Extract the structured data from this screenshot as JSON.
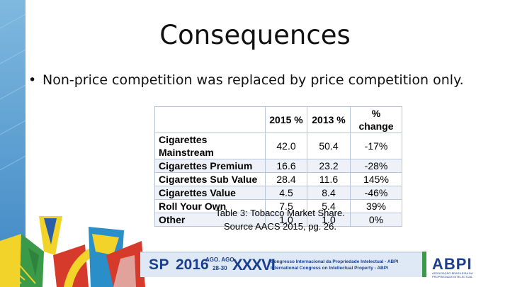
{
  "slide": {
    "title": "Consequences",
    "bullet": "Non-price competition was replaced by price competition only."
  },
  "table": {
    "headers": [
      "",
      "2015 %",
      "2013 %",
      "% change"
    ],
    "rows": [
      {
        "label": "Cigarettes Mainstream",
        "y2015": "42.0",
        "y2013": "50.4",
        "change": "-17%"
      },
      {
        "label": "Cigarettes Premium",
        "y2015": "16.6",
        "y2013": "23.2",
        "change": "-28%"
      },
      {
        "label": "Cigarettes Sub Value",
        "y2015": "28.4",
        "y2013": "11.6",
        "change": "145%"
      },
      {
        "label": "Cigarettes Value",
        "y2015": "4.5",
        "y2013": "8.4",
        "change": "-46%"
      },
      {
        "label": "Roll Your Own",
        "y2015": "7.5",
        "y2013": "5.4",
        "change": "39%"
      },
      {
        "label": "Other",
        "y2015": "1.0",
        "y2013": "1.0",
        "change": "0%"
      }
    ],
    "caption_line1": "Table 3: Tobacco Market Share.",
    "caption_line2": "Source AACS 2015, pg. 26."
  },
  "footer": {
    "city": "SP",
    "year": "2016",
    "dates_line1": "AGO. AGO",
    "dates_line2": "28-30",
    "edition": "XXXVI",
    "congress_line1": "Congresso Internacional da Propriedade Intelectual - ABPI",
    "congress_line2": "International Congress on Intellectual Property - ABPI",
    "org": "ABPI",
    "org_sub": "ASSOCIAÇÃO BRASILEIRA DA PROPRIEDADE INTELECTUAL",
    "colors": {
      "blue": "#1a3f8f",
      "yellow": "#f2d32a",
      "green": "#3a9a48",
      "red": "#d63a2a",
      "teal": "#2a8fc8"
    }
  }
}
